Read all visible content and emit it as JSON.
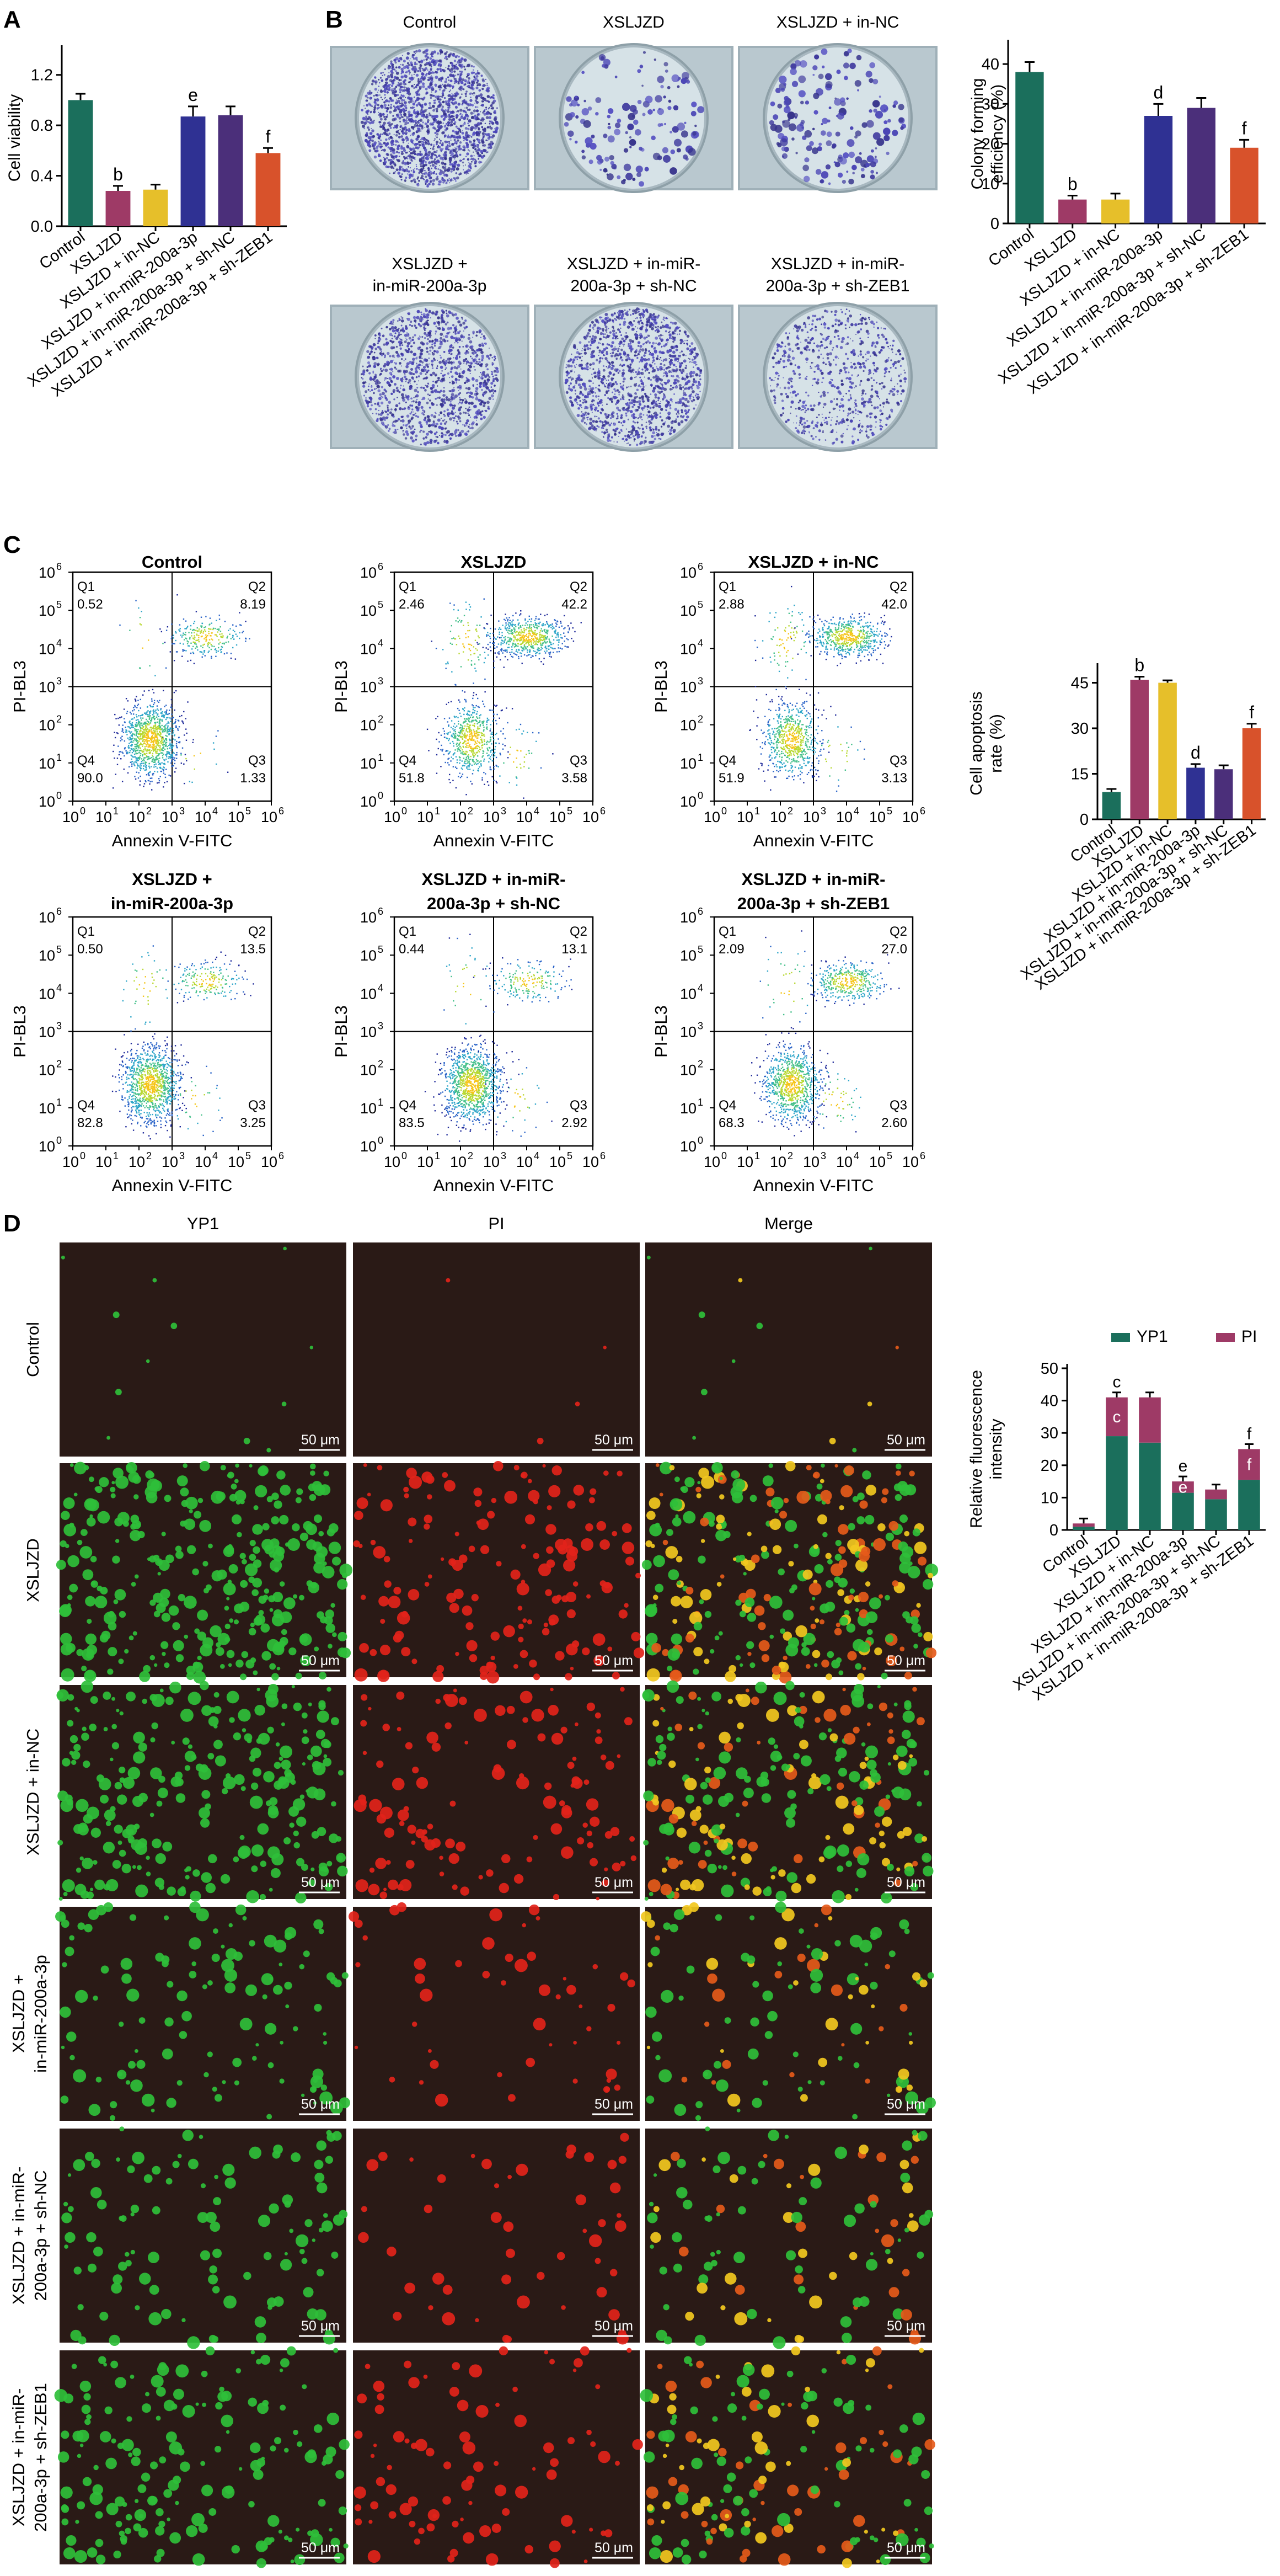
{
  "groups": [
    "Control",
    "XSLJZD",
    "XSLJZD + in-NC",
    "XSLJZD + in-miR-200a-3p",
    "XSLJZD + in-miR-200a-3p + sh-NC",
    "XSLJZD + in-miR-200a-3p + sh-ZEB1"
  ],
  "colors": {
    "Control": "#1b6f5c",
    "XSLJZD": "#9e3a66",
    "XSLJZD + in-NC": "#e6bf2a",
    "XSLJZD + in-miR-200a-3p": "#2f3193",
    "XSLJZD + in-miR-200a-3p + sh-NC": "#4b2f7a",
    "XSLJZD + in-miR-200a-3p + sh-ZEB1": "#d8522b",
    "YP1": "#1b6f5c",
    "PI": "#9e3a66"
  },
  "panel_letters": {
    "A": "A",
    "B": "B",
    "C": "C",
    "D": "D"
  },
  "chart_data": [
    {
      "panel": "A",
      "type": "bar",
      "ylabel": "Cell viability",
      "ylim": [
        0,
        1.4
      ],
      "yticks": [
        "0.0",
        "0.4",
        "0.8",
        "1.2"
      ],
      "ytick_values": [
        0,
        0.4,
        0.8,
        1.2
      ],
      "categories": [
        "Control",
        "XSLJZD",
        "XSLJZD + in-NC",
        "XSLJZD + in-miR-200a-3p",
        "XSLJZD + in-miR-200a-3p + sh-NC",
        "XSLJZD + in-miR-200a-3p + sh-ZEB1"
      ],
      "values": [
        1.0,
        0.28,
        0.29,
        0.87,
        0.88,
        0.58
      ],
      "errors": [
        0.05,
        0.04,
        0.04,
        0.08,
        0.07,
        0.04
      ],
      "annotations": [
        "",
        "b",
        "",
        "e",
        "",
        "f"
      ]
    },
    {
      "panel": "B",
      "type": "bar",
      "ylabel": "Colony forming efficiency (%)",
      "ylim": [
        0,
        45
      ],
      "yticks": [
        "0",
        "10",
        "20",
        "30",
        "40"
      ],
      "ytick_values": [
        0,
        10,
        20,
        30,
        40
      ],
      "categories": [
        "Control",
        "XSLJZD",
        "XSLJZD + in-NC",
        "XSLJZD + in-miR-200a-3p",
        "XSLJZD + in-miR-200a-3p + sh-NC",
        "XSLJZD + in-miR-200a-3p + sh-ZEB1"
      ],
      "values": [
        38,
        6,
        6,
        27,
        29,
        19
      ],
      "errors": [
        2.5,
        1.0,
        1.5,
        3.0,
        2.5,
        2.0
      ],
      "annotations": [
        "",
        "b",
        "",
        "d",
        "",
        "f"
      ]
    },
    {
      "panel": "C",
      "type": "bar",
      "ylabel": "Cell apoptosis rate (%)",
      "ylim": [
        0,
        50
      ],
      "yticks": [
        "0",
        "15",
        "30",
        "45"
      ],
      "ytick_values": [
        0,
        15,
        30,
        45
      ],
      "categories": [
        "Control",
        "XSLJZD",
        "XSLJZD + in-NC",
        "XSLJZD + in-miR-200a-3p",
        "XSLJZD + in-miR-200a-3p + sh-NC",
        "XSLJZD + in-miR-200a-3p + sh-ZEB1"
      ],
      "values": [
        9,
        46,
        45,
        17,
        16.5,
        30
      ],
      "errors": [
        1.0,
        1.0,
        0.8,
        1.2,
        1.3,
        1.5
      ],
      "annotations": [
        "",
        "b",
        "",
        "d",
        "",
        "f"
      ]
    },
    {
      "panel": "D",
      "type": "bar",
      "stacked": true,
      "ylabel": "Relative fluorescence intensity",
      "ylim": [
        0,
        50
      ],
      "yticks": [
        "0",
        "10",
        "20",
        "30",
        "40",
        "50"
      ],
      "ytick_values": [
        0,
        10,
        20,
        30,
        40,
        50
      ],
      "categories": [
        "Control",
        "XSLJZD",
        "XSLJZD + in-NC",
        "XSLJZD + in-miR-200a-3p",
        "XSLJZD + in-miR-200a-3p + sh-NC",
        "XSLJZD + in-miR-200a-3p + sh-ZEB1"
      ],
      "series": [
        {
          "name": "YP1",
          "values": [
            1.0,
            29,
            27,
            11.5,
            9.5,
            15.5
          ]
        },
        {
          "name": "PI",
          "values": [
            1.0,
            12,
            14,
            3.5,
            3.0,
            9.5
          ]
        }
      ],
      "annotations_top": [
        "",
        "c",
        "",
        "e",
        "",
        "f"
      ],
      "annotations_inner": [
        "",
        "c",
        "",
        "e",
        "",
        "f"
      ],
      "legend": "top"
    }
  ],
  "colony_labels": [
    "Control",
    "XSLJZD",
    "XSLJZD + in-NC",
    "XSLJZD + in-miR-200a-3p",
    "XSLJZD + in-miR-200a-3p + sh-NC",
    "XSLJZD + in-miR-200a-3p + sh-ZEB1"
  ],
  "colony_labels_display": [
    [
      "Control"
    ],
    [
      "XSLJZD"
    ],
    [
      "XSLJZD + in-NC"
    ],
    [
      "XSLJZD +",
      "in-miR-200a-3p"
    ],
    [
      "XSLJZD + in-miR-",
      "200a-3p + sh-NC"
    ],
    [
      "XSLJZD + in-miR-",
      "200a-3p + sh-ZEB1"
    ]
  ],
  "colony_density": [
    2000,
    140,
    170,
    1300,
    1500,
    700
  ],
  "flow": {
    "x_axis_label": "Annexin V-FITC",
    "y_axis_label": "PI-BL3",
    "tick_base": "10",
    "tick_exps": [
      "0",
      "1",
      "2",
      "3",
      "4",
      "5",
      "6"
    ],
    "quadrant_names": [
      "Q1",
      "Q2",
      "Q3",
      "Q4"
    ],
    "plots": [
      {
        "title": [
          "Control"
        ],
        "Q1": "0.52",
        "Q2": "8.19",
        "Q3": "1.33",
        "Q4": "90.0"
      },
      {
        "title": [
          "XSLJZD"
        ],
        "Q1": "2.46",
        "Q2": "42.2",
        "Q3": "3.58",
        "Q4": "51.8"
      },
      {
        "title": [
          "XSLJZD + in-NC"
        ],
        "Q1": "2.88",
        "Q2": "42.0",
        "Q3": "3.13",
        "Q4": "51.9"
      },
      {
        "title": [
          "XSLJZD +",
          "in-miR-200a-3p"
        ],
        "Q1": "0.50",
        "Q2": "13.5",
        "Q3": "3.25",
        "Q4": "82.8"
      },
      {
        "title": [
          "XSLJZD + in-miR-",
          "200a-3p + sh-NC"
        ],
        "Q1": "0.44",
        "Q2": "13.1",
        "Q3": "2.92",
        "Q4": "83.5"
      },
      {
        "title": [
          "XSLJZD + in-miR-",
          "200a-3p + sh-ZEB1"
        ],
        "Q1": "2.09",
        "Q2": "27.0",
        "Q3": "2.60",
        "Q4": "68.3"
      }
    ]
  },
  "fluor": {
    "column_headers": [
      "YP1",
      "PI",
      "Merge"
    ],
    "row_labels": [
      [
        "Control"
      ],
      [
        "XSLJZD"
      ],
      [
        "XSLJZD + in-NC"
      ],
      [
        "XSLJZD +",
        "in-miR-200a-3p"
      ],
      [
        "XSLJZD + in-miR-",
        "200a-3p + sh-NC"
      ],
      [
        "XSLJZD + in-miR-",
        "200a-3p + sh-ZEB1"
      ]
    ],
    "scale_bar": "50 μm",
    "density": [
      12,
      320,
      260,
      120,
      110,
      170
    ]
  }
}
